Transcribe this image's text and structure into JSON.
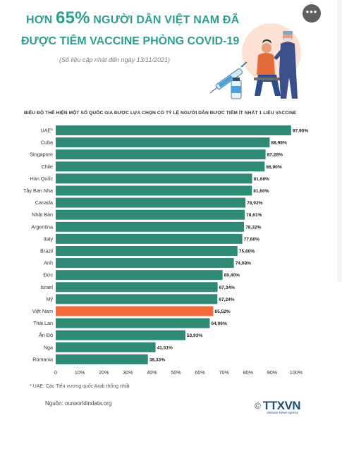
{
  "header": {
    "line1_pre": "HƠN ",
    "line1_big": "65%",
    "line1_post": " NGƯỜI DÂN VIỆT NAM ĐÃ",
    "line2": "ĐƯỢC TIÊM VACCINE PHÒNG COVID-19",
    "updated": "(Số liệu cập nhật đến ngày 13/11/2021)"
  },
  "more_icon": "more-horizontal-icon",
  "more_glyph": "•••",
  "colors": {
    "teal": "#2e8a75",
    "highlight": "#f26a3a",
    "heading": "#2e9e8e"
  },
  "chart_data": {
    "type": "bar",
    "orientation": "horizontal",
    "title": "BIỂU ĐỒ THỂ HIỆN MỘT SỐ QUỐC GIA ĐƯỢC LỰA CHỌN CÓ TỶ LỆ NGƯỜI DÂN ĐƯỢC TIÊM  ÍT NHẤT 1 LIỀU VACCINE",
    "categories": [
      "UAE*",
      "Cuba",
      "Singapore",
      "Chile",
      "Hàn Quốc",
      "Tây Ban Nha",
      "Canada",
      "Nhật Bản",
      "Argentina",
      "Italy",
      "Brazil",
      "Anh",
      "Đức",
      "Israel",
      "Mỹ",
      "Việt Nam",
      "Thái Lan",
      "Ấn Độ",
      "Nga",
      "Romania"
    ],
    "values": [
      97.9,
      88.98,
      87.28,
      86.9,
      81.68,
      81.6,
      78.92,
      78.61,
      78.32,
      77.6,
      75.6,
      74.08,
      69.4,
      67.34,
      67.24,
      65.52,
      64.06,
      53.93,
      41.51,
      38.33
    ],
    "value_labels": [
      "97,90%",
      "88,98%",
      "87,28%",
      "86,90%",
      "81,68%",
      "81,60%",
      "78,92%",
      "78,61%",
      "78,32%",
      "77,60%",
      "75,60%",
      "74,08%",
      "69,40%",
      "67,34%",
      "67,24%",
      "65,52%",
      "64,06%",
      "53,93%",
      "41,51%",
      "38,33%"
    ],
    "highlight": "Việt Nam",
    "xlim": [
      0,
      100
    ],
    "ticks": [
      "0",
      "10%",
      "20%",
      "30%",
      "40%",
      "50%",
      "60%",
      "70%",
      "80%",
      "90%",
      "100%"
    ],
    "tick_values": [
      0,
      10,
      20,
      30,
      40,
      50,
      60,
      70,
      80,
      90,
      100
    ],
    "grid": false
  },
  "footnote": "* UAE: Các Tiểu vương quốc Arab thống nhất",
  "source": "Nguồn: ourworldindata.org",
  "logo": {
    "copyright": "©",
    "name": "TTXVN",
    "subtitle": "Vietnam News Agency"
  }
}
